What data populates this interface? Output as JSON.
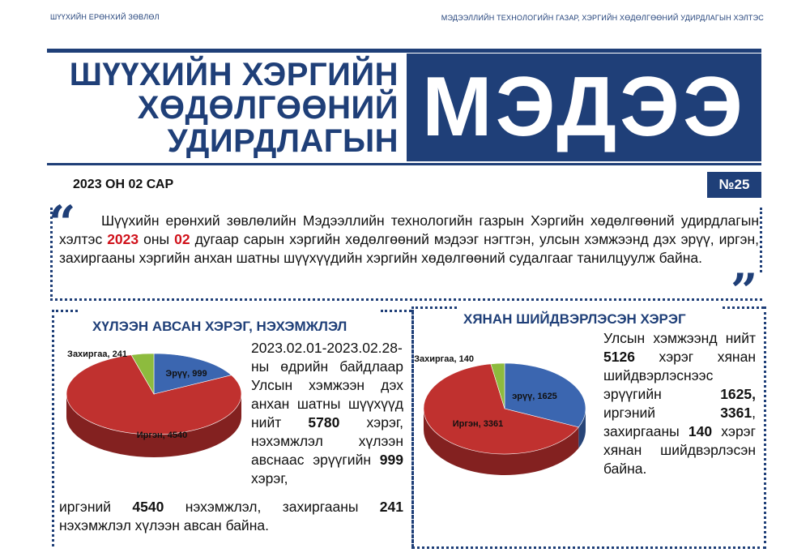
{
  "header": {
    "org_left": "ШҮҮХИЙН ЕРӨНХИЙ ЗӨВЛӨЛ",
    "org_right": "МЭДЭЭЛЛИЙН ТЕХНОЛОГИЙН ГАЗАР, ХЭРГИЙН ХӨДӨЛГӨӨНИЙ УДИРДЛАГЫН ХЭЛТЭС",
    "title_lines": [
      "ШҮҮХИЙН ХЭРГИЙН",
      "ХӨДӨЛГӨӨНИЙ",
      "УДИРДЛАГЫН"
    ],
    "masthead": "МЭДЭЭ",
    "date": "2023 ОН 02 САР",
    "issue": "№25"
  },
  "intro": {
    "open_quote": "“",
    "close_quote": "”",
    "part1": "Шүүхийн ерөнхий зөвлөлийн Мэдээллийн технологийн газрын Хэргийн хөдөлгөөний удирдлагын хэлтэс ",
    "year": "2023",
    "part2": " оны ",
    "month": "02",
    "part3": " дугаар сарын хэргийн хөдөлгөөний мэдээг нэгтгэн, улсын хэмжээнд дэх эрүү, иргэн, захиргааны хэргийн анхан шатны шүүхүүдийн хэргийн хөдөлгөөний судалгааг танилцуулж байна."
  },
  "section1": {
    "title": "ХҮЛЭЭН АВСАН ХЭРЭГ, НЭХЭМЖЛЭЛ",
    "text_a": "2023.02.01-2023.02.28-ны өдрийн байдлаар Улсын хэмжээн дэх анхан шатны шүүхүүд нийт ",
    "total": "5780",
    "text_b": " хэрэг, нэхэмжлэл хүлээн авснаас эрүүгийн ",
    "criminal": "999",
    "text_c": " хэрэг,",
    "text_d": "иргэний ",
    "civil": "4540",
    "text_e": " нэхэмжлэл, захиргааны ",
    "admin": "241",
    "text_f": " нэхэмжлэл хүлээн авсан байна."
  },
  "section2": {
    "title": "ХЯНАН ШИЙДВЭРЛЭСЭН ХЭРЭГ",
    "text_a": "Улсын хэмжээнд нийт ",
    "total": "5126",
    "text_b": " хэрэг хянан шийдвэрлэснээс эрүүгийн ",
    "criminal": "1625,",
    "text_c": " иргэний ",
    "civil": "3361",
    "text_d": ", захиргааны ",
    "admin": "140",
    "text_e": " хэрэг хянан шийдвэрлэсэн байна."
  },
  "chart_data": [
    {
      "type": "pie",
      "series": [
        {
          "label": "Эрүү",
          "value": 999,
          "color": "#3b66b0"
        },
        {
          "label": "Иргэн",
          "value": 4540,
          "color": "#c0312f"
        },
        {
          "label": "Захиргаа",
          "value": 241,
          "color": "#8dbb3e"
        }
      ],
      "labels": [
        "Эрүү, 999",
        "Иргэн, 4540",
        "Захиргаа, 241"
      ]
    },
    {
      "type": "pie",
      "series": [
        {
          "label": "эрүү",
          "value": 1625,
          "color": "#3b66b0"
        },
        {
          "label": "Иргэн",
          "value": 3361,
          "color": "#c0312f"
        },
        {
          "label": "Захиргаа",
          "value": 140,
          "color": "#8dbb3e"
        }
      ],
      "labels": [
        "эрүү, 1625",
        "Иргэн, 3361",
        "Захиргаа, 140"
      ]
    }
  ]
}
